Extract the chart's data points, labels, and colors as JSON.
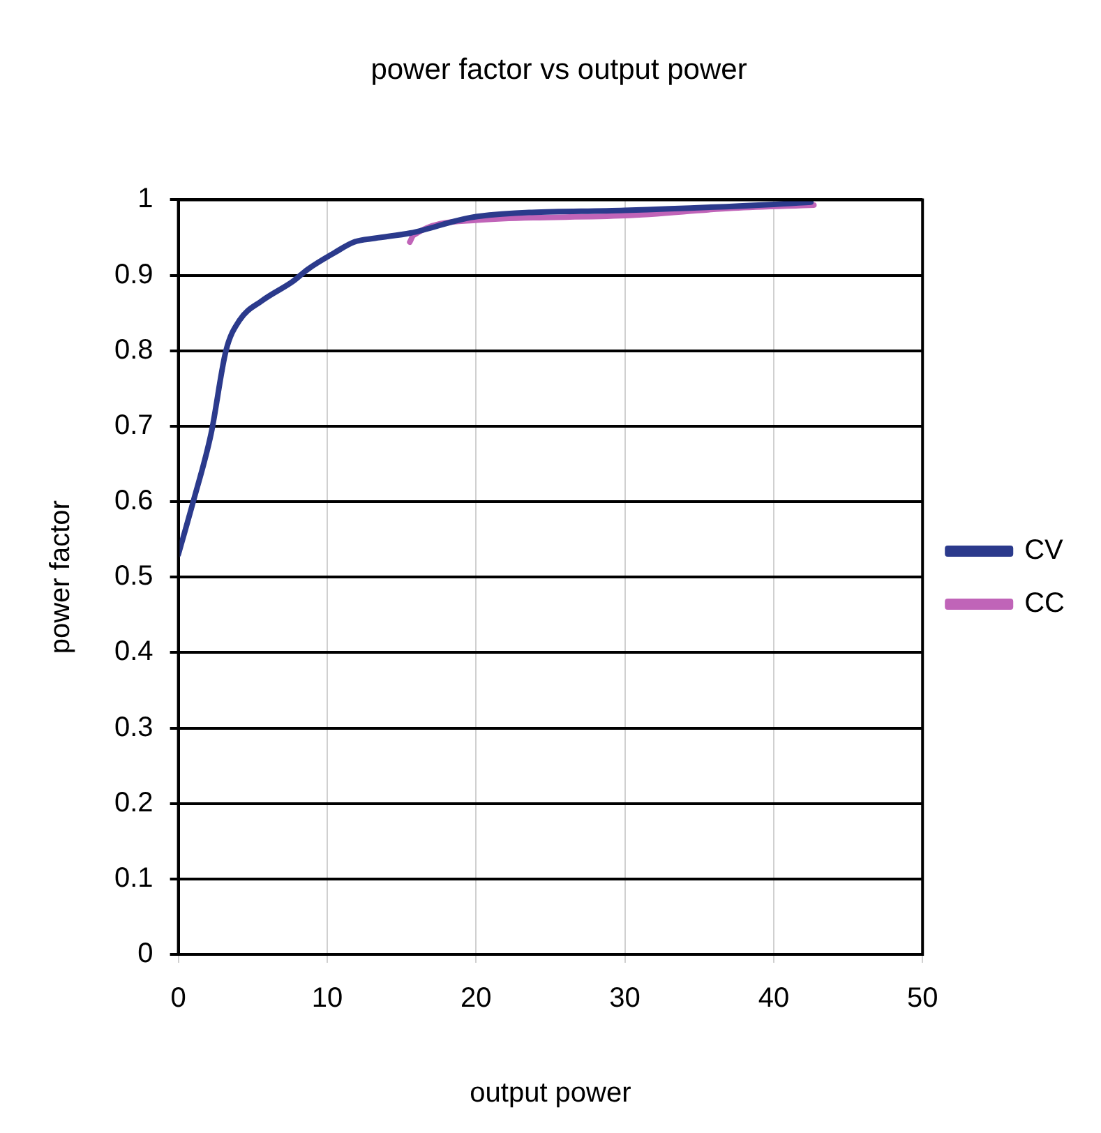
{
  "chart_data": {
    "type": "line",
    "title": "power factor vs output power",
    "xlabel": "output power",
    "ylabel": "power factor",
    "xlim": [
      0,
      50
    ],
    "xticks": [
      0,
      10,
      20,
      30,
      40,
      50
    ],
    "ylim": [
      0,
      1
    ],
    "yticks": [
      0,
      0.1,
      0.2,
      0.3,
      0.4,
      0.5,
      0.6,
      0.7,
      0.8,
      0.9,
      1
    ],
    "grid": true,
    "legend": "right",
    "marker": "none",
    "line_style": "solid",
    "series": [
      {
        "name": "CV",
        "color": "#2b3a8c",
        "x": [
          0,
          1,
          2.2,
          3.2,
          4.1,
          5.6,
          7.7,
          8.7,
          10.5,
          11.8,
          13.2,
          15.6,
          20.1,
          30,
          40,
          42.5
        ],
        "values": [
          0.53,
          0.6,
          0.69,
          0.8,
          0.84,
          0.866,
          0.892,
          0.908,
          0.93,
          0.944,
          0.949,
          0.956,
          0.978,
          0.986,
          0.994,
          0.997
        ]
      },
      {
        "name": "CC",
        "color": "#c064b8",
        "x": [
          15.55,
          15.8,
          20.1,
          30,
          37.3,
          42.7
        ],
        "values": [
          0.944,
          0.953,
          0.973,
          0.979,
          0.989,
          0.993
        ]
      }
    ]
  }
}
